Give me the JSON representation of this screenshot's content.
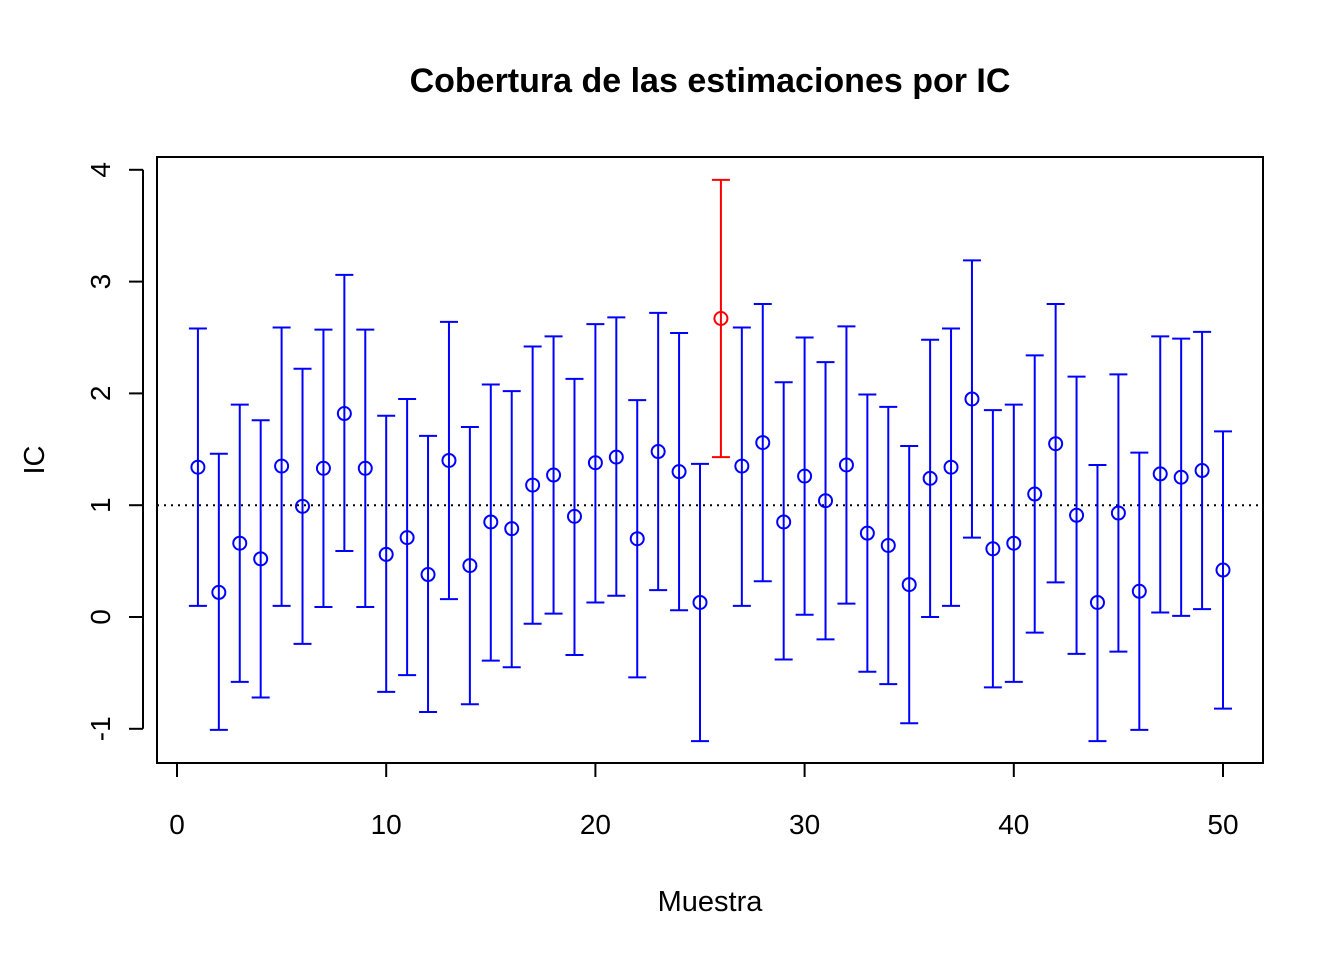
{
  "chart_data": {
    "type": "scatter",
    "title": "Cobertura de las estimaciones por IC",
    "xlabel": "Muestra",
    "ylabel": "IC",
    "xlim": [
      0,
      50
    ],
    "ylim": [
      -1.1,
      3.9
    ],
    "x_ticks": [
      0,
      10,
      20,
      30,
      40,
      50
    ],
    "y_ticks": [
      -1,
      0,
      1,
      2,
      3,
      4
    ],
    "reference_line": 1,
    "grid": false,
    "colors": {
      "covers": "#0000ff",
      "misses": "#ff0000",
      "reference": "#000000"
    },
    "x": [
      1,
      2,
      3,
      4,
      5,
      6,
      7,
      8,
      9,
      10,
      11,
      12,
      13,
      14,
      15,
      16,
      17,
      18,
      19,
      20,
      21,
      22,
      23,
      24,
      25,
      26,
      27,
      28,
      29,
      30,
      31,
      32,
      33,
      34,
      35,
      36,
      37,
      38,
      39,
      40,
      41,
      42,
      43,
      44,
      45,
      46,
      47,
      48,
      49,
      50
    ],
    "estimate": [
      1.34,
      0.22,
      0.66,
      0.52,
      1.35,
      0.99,
      1.33,
      1.82,
      1.33,
      0.56,
      0.71,
      0.38,
      1.4,
      0.46,
      0.85,
      0.79,
      1.18,
      1.27,
      0.9,
      1.38,
      1.43,
      0.7,
      1.48,
      1.3,
      0.13,
      2.67,
      1.35,
      1.56,
      0.85,
      1.26,
      1.04,
      1.36,
      0.75,
      0.64,
      0.29,
      1.24,
      1.34,
      1.95,
      0.61,
      0.66,
      1.1,
      1.55,
      0.91,
      0.13,
      0.93,
      0.23,
      1.28,
      1.25,
      1.31,
      0.42
    ],
    "lower": [
      0.1,
      -1.01,
      -0.58,
      -0.72,
      0.1,
      -0.24,
      0.09,
      0.59,
      0.09,
      -0.67,
      -0.52,
      -0.85,
      0.16,
      -0.78,
      -0.39,
      -0.45,
      -0.06,
      0.03,
      -0.34,
      0.13,
      0.19,
      -0.54,
      0.24,
      0.06,
      -1.11,
      1.43,
      0.1,
      0.32,
      -0.38,
      0.02,
      -0.2,
      0.12,
      -0.49,
      -0.6,
      -0.95,
      0.0,
      0.1,
      0.71,
      -0.63,
      -0.58,
      -0.14,
      0.31,
      -0.33,
      -1.11,
      -0.31,
      -1.01,
      0.04,
      0.01,
      0.07,
      -0.82
    ],
    "upper": [
      2.58,
      1.46,
      1.9,
      1.76,
      2.59,
      2.22,
      2.57,
      3.06,
      2.57,
      1.8,
      1.95,
      1.62,
      2.64,
      1.7,
      2.08,
      2.02,
      2.42,
      2.51,
      2.13,
      2.62,
      2.68,
      1.94,
      2.72,
      2.54,
      1.37,
      3.91,
      2.59,
      2.8,
      2.1,
      2.5,
      2.28,
      2.6,
      1.99,
      1.88,
      1.53,
      2.48,
      2.58,
      3.19,
      1.85,
      1.9,
      2.34,
      2.8,
      2.15,
      1.36,
      2.17,
      1.47,
      2.51,
      2.49,
      2.55,
      1.66
    ]
  }
}
